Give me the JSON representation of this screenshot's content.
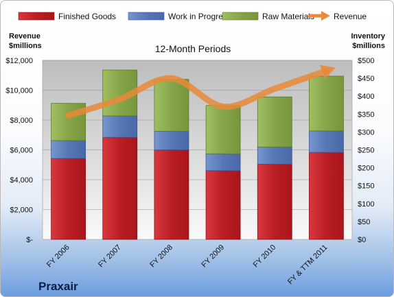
{
  "chart_data": {
    "type": "bar",
    "stacked": true,
    "center_title": "12-Month Periods",
    "company": "Praxair",
    "categories": [
      "FY 2006",
      "FY 2007",
      "FY 2008",
      "FY 2009",
      "FY 2010",
      "FY & TTM 2011"
    ],
    "left_axis": {
      "title_line1": "Revenue",
      "title_line2": "$millions",
      "ylim": [
        0,
        12000
      ],
      "ticks": [
        {
          "value": 0,
          "label": "$-"
        },
        {
          "value": 2000,
          "label": "$2,000"
        },
        {
          "value": 4000,
          "label": "$4,000"
        },
        {
          "value": 6000,
          "label": "$6,000"
        },
        {
          "value": 8000,
          "label": "$8,000"
        },
        {
          "value": 10000,
          "label": "$10,000"
        },
        {
          "value": 12000,
          "label": "$12,000"
        }
      ]
    },
    "right_axis": {
      "title_line1": "Inventory",
      "title_line2": "$millions",
      "ylim": [
        0,
        500
      ],
      "ticks": [
        {
          "value": 0,
          "label": "$0"
        },
        {
          "value": 50,
          "label": "$50"
        },
        {
          "value": 100,
          "label": "$100"
        },
        {
          "value": 150,
          "label": "$150"
        },
        {
          "value": 200,
          "label": "$200"
        },
        {
          "value": 250,
          "label": "$250"
        },
        {
          "value": 300,
          "label": "$300"
        },
        {
          "value": 350,
          "label": "$350"
        },
        {
          "value": 400,
          "label": "$400"
        },
        {
          "value": 450,
          "label": "$450"
        },
        {
          "value": 500,
          "label": "$500"
        }
      ]
    },
    "series": [
      {
        "name": "Finished Goods",
        "axis": "right",
        "color": "#c0272d",
        "values": [
          226,
          285,
          250,
          192,
          210,
          243
        ]
      },
      {
        "name": "Work in Progress",
        "axis": "right",
        "color": "#5b7fbf",
        "values": [
          50,
          60,
          52,
          47,
          48,
          60
        ]
      },
      {
        "name": "Raw Materials",
        "axis": "right",
        "color": "#8dac52",
        "values": [
          104,
          128,
          145,
          135,
          140,
          153
        ]
      },
      {
        "name": "Revenue",
        "axis": "left",
        "type": "line",
        "color": "#e9893a",
        "values": [
          8300,
          9400,
          10800,
          8900,
          10100,
          11300
        ]
      }
    ],
    "grid": true,
    "legend_position": "top"
  }
}
